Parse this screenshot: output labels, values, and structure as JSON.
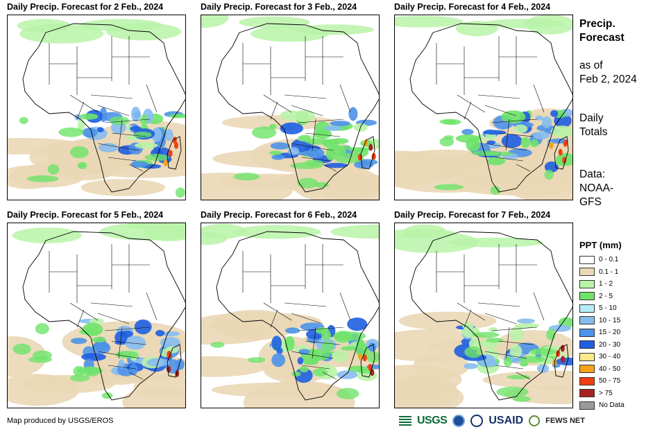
{
  "panels": [
    {
      "title": "Daily Precip. Forecast for 2 Feb., 2024"
    },
    {
      "title": "Daily Precip. Forecast for 3 Feb., 2024"
    },
    {
      "title": "Daily Precip. Forecast for 4 Feb., 2024"
    },
    {
      "title": "Daily Precip. Forecast for 5 Feb., 2024"
    },
    {
      "title": "Daily Precip. Forecast for 6 Feb., 2024"
    },
    {
      "title": "Daily Precip. Forecast for 7 Feb., 2024"
    }
  ],
  "sidebar": {
    "heading_line1": "Precip.",
    "heading_line2": "Forecast",
    "asof_line1": "as of",
    "asof_line2": "Feb 2, 2024",
    "totals_line1": "Daily",
    "totals_line2": "Totals",
    "data_line1": "Data:",
    "data_line2": "NOAA-",
    "data_line3": "GFS"
  },
  "legend": {
    "title": "PPT (mm)",
    "items": [
      {
        "label": "0 - 0.1",
        "color": "#ffffff"
      },
      {
        "label": "0.1 - 1",
        "color": "#ead7b5"
      },
      {
        "label": "1 - 2",
        "color": "#b9f3a8"
      },
      {
        "label": "2 - 5",
        "color": "#6ee36a"
      },
      {
        "label": "5 - 10",
        "color": "#b6ecf6"
      },
      {
        "label": "10 - 15",
        "color": "#86bdf0"
      },
      {
        "label": "15 - 20",
        "color": "#4e92e8"
      },
      {
        "label": "20 - 30",
        "color": "#1f5fe0"
      },
      {
        "label": "30 - 40",
        "color": "#fde989"
      },
      {
        "label": "40 - 50",
        "color": "#f7a21b"
      },
      {
        "label": "50 - 75",
        "color": "#ee4010"
      },
      {
        "label": "> 75",
        "color": "#a52222"
      },
      {
        "label": "No Data",
        "color": "#9a9a9a"
      }
    ]
  },
  "credit": "Map produced by USGS/EROS",
  "logos": {
    "usgs": "USGS",
    "usaid": "USAID",
    "fews": "FEWS NET"
  }
}
